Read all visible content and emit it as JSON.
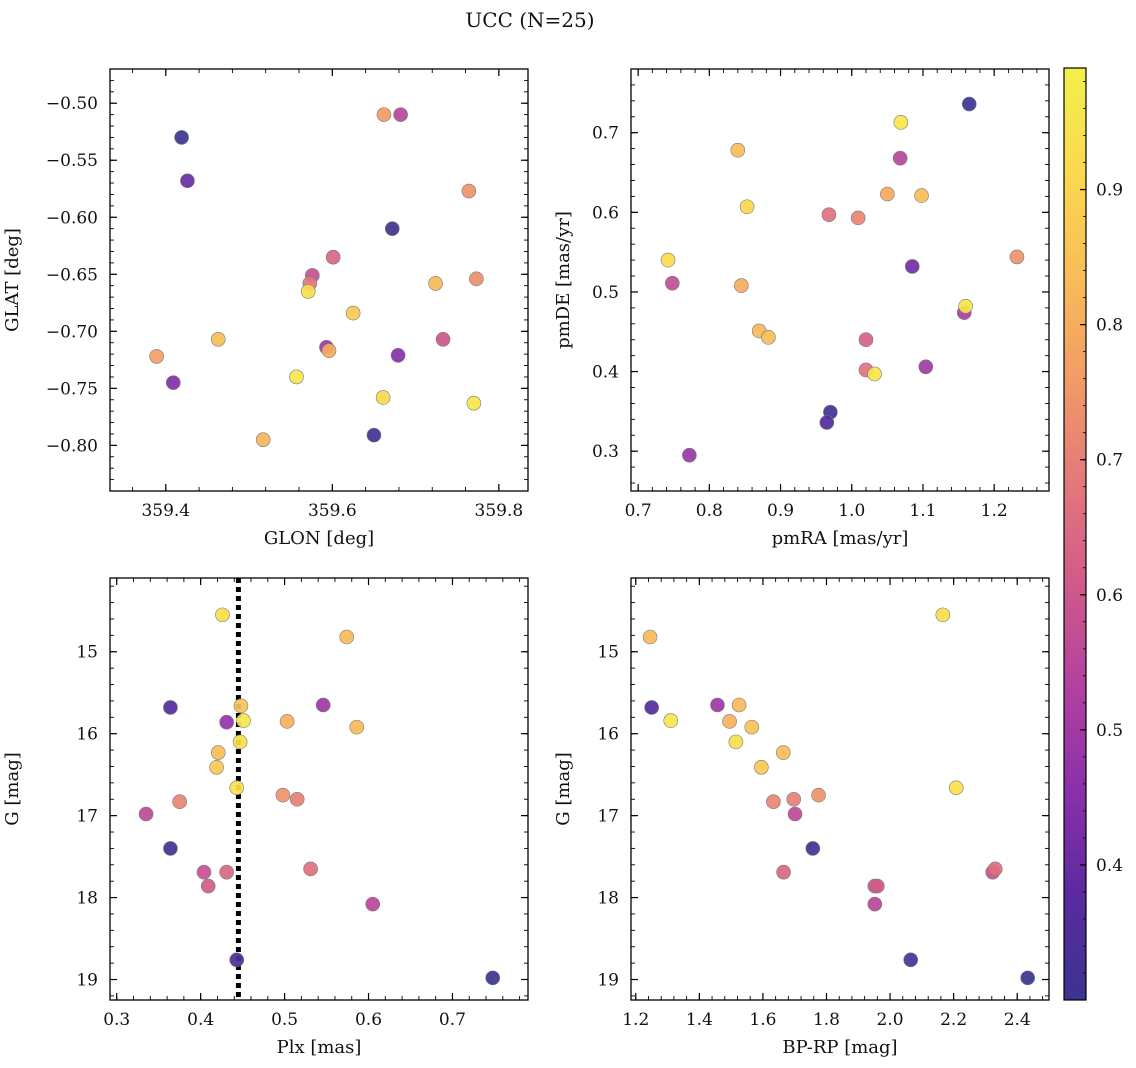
{
  "title": "UCC (N=25)",
  "colorbar": {
    "range": [
      0.3,
      0.99
    ],
    "ticks": [
      0.4,
      0.5,
      0.6,
      0.7,
      0.8,
      0.9
    ],
    "tick_labels": [
      "0.4",
      "0.5",
      "0.6",
      "0.7",
      "0.8",
      "0.9"
    ],
    "colors": [
      "#3b3490",
      "#5a2aa0",
      "#8a30ab",
      "#b240a0",
      "#cf5a8a",
      "#e4787a",
      "#f29b66",
      "#f9bd58",
      "#fbd94e",
      "#f2f04b"
    ]
  },
  "chart_data": [
    {
      "type": "scatter",
      "xlabel": "GLON [deg]",
      "ylabel": "GLAT [deg]",
      "xlim": [
        359.333,
        359.835
      ],
      "ylim": [
        -0.84,
        -0.47
      ],
      "xticks": [
        359.4,
        359.6,
        359.8
      ],
      "xtick_labels": [
        "359.4",
        "359.6",
        "359.8"
      ],
      "yticks": [
        -0.5,
        -0.55,
        -0.6,
        -0.65,
        -0.7,
        -0.75,
        -0.8
      ],
      "ytick_labels": [
        "−0.50",
        "−0.55",
        "−0.60",
        "−0.65",
        "−0.70",
        "−0.75",
        "−0.80"
      ],
      "x": [
        359.419,
        359.426,
        359.662,
        359.682,
        359.764,
        359.672,
        359.601,
        359.576,
        359.573,
        359.571,
        359.724,
        359.773,
        359.625,
        359.389,
        359.463,
        359.593,
        359.596,
        359.679,
        359.733,
        359.409,
        359.557,
        359.661,
        359.77,
        359.517,
        359.65
      ],
      "y": [
        -0.53,
        -0.568,
        -0.51,
        -0.51,
        -0.577,
        -0.61,
        -0.635,
        -0.651,
        -0.658,
        -0.665,
        -0.658,
        -0.654,
        -0.684,
        -0.722,
        -0.707,
        -0.714,
        -0.717,
        -0.721,
        -0.707,
        -0.745,
        -0.74,
        -0.758,
        -0.763,
        -0.795,
        -0.791
      ],
      "c": [
        0.31,
        0.4,
        0.76,
        0.55,
        0.74,
        0.31,
        0.64,
        0.58,
        0.68,
        0.93,
        0.83,
        0.73,
        0.87,
        0.77,
        0.84,
        0.49,
        0.8,
        0.45,
        0.6,
        0.44,
        0.96,
        0.91,
        0.95,
        0.82,
        0.32
      ]
    },
    {
      "type": "scatter",
      "xlabel": "pmRA [mas/yr]",
      "ylabel": "pmDE [mas/yr]",
      "xlim": [
        0.69,
        1.277
      ],
      "ylim": [
        0.25,
        0.78
      ],
      "xticks": [
        0.7,
        0.8,
        0.9,
        1.0,
        1.1,
        1.2
      ],
      "xtick_labels": [
        "0.7",
        "0.8",
        "0.9",
        "1.0",
        "1.1",
        "1.2"
      ],
      "yticks": [
        0.3,
        0.4,
        0.5,
        0.6,
        0.7
      ],
      "ytick_labels": [
        "0.3",
        "0.4",
        "0.5",
        "0.6",
        "0.7"
      ],
      "x": [
        1.165,
        1.069,
        1.068,
        0.84,
        0.853,
        0.968,
        1.009,
        1.05,
        1.098,
        0.742,
        0.748,
        0.845,
        1.085,
        1.232,
        1.16,
        1.158,
        0.87,
        0.883,
        1.02,
        1.02,
        1.032,
        1.104,
        0.97,
        0.965,
        0.772
      ],
      "y": [
        0.736,
        0.713,
        0.668,
        0.678,
        0.607,
        0.597,
        0.593,
        0.623,
        0.621,
        0.54,
        0.511,
        0.508,
        0.532,
        0.544,
        0.482,
        0.474,
        0.451,
        0.443,
        0.44,
        0.402,
        0.397,
        0.406,
        0.349,
        0.336,
        0.295
      ],
      "c": [
        0.31,
        0.95,
        0.55,
        0.84,
        0.91,
        0.66,
        0.71,
        0.79,
        0.84,
        0.93,
        0.57,
        0.8,
        0.42,
        0.74,
        0.96,
        0.52,
        0.83,
        0.84,
        0.63,
        0.67,
        0.95,
        0.5,
        0.32,
        0.36,
        0.48
      ]
    },
    {
      "type": "scatter",
      "xlabel": "Plx [mas]",
      "ylabel": "G [mag]",
      "xlim": [
        0.292,
        0.79
      ],
      "ylim": [
        19.25,
        14.1
      ],
      "xticks": [
        0.3,
        0.4,
        0.5,
        0.6,
        0.7
      ],
      "xtick_labels": [
        "0.3",
        "0.4",
        "0.5",
        "0.6",
        "0.7"
      ],
      "yticks": [
        15,
        16,
        17,
        18,
        19
      ],
      "ytick_labels": [
        "15",
        "16",
        "17",
        "18",
        "19"
      ],
      "vline": 0.445,
      "x": [
        0.426,
        0.574,
        0.364,
        0.448,
        0.546,
        0.431,
        0.451,
        0.503,
        0.586,
        0.447,
        0.421,
        0.419,
        0.443,
        0.498,
        0.515,
        0.375,
        0.335,
        0.364,
        0.404,
        0.431,
        0.531,
        0.409,
        0.605,
        0.443,
        0.748
      ],
      "y": [
        14.55,
        14.82,
        15.68,
        15.66,
        15.65,
        15.86,
        15.84,
        15.85,
        15.92,
        16.1,
        16.23,
        16.41,
        16.66,
        16.75,
        16.8,
        16.83,
        16.98,
        17.4,
        17.69,
        17.69,
        17.65,
        17.86,
        18.08,
        18.76,
        18.98
      ],
      "c": [
        0.93,
        0.83,
        0.36,
        0.85,
        0.49,
        0.47,
        0.96,
        0.81,
        0.83,
        0.93,
        0.84,
        0.87,
        0.94,
        0.74,
        0.7,
        0.71,
        0.56,
        0.31,
        0.58,
        0.64,
        0.66,
        0.61,
        0.55,
        0.34,
        0.3
      ]
    },
    {
      "type": "scatter",
      "xlabel": "BP-RP [mag]",
      "ylabel": "G [mag]",
      "xlim": [
        1.185,
        2.5
      ],
      "ylim": [
        19.25,
        14.1
      ],
      "xticks": [
        1.2,
        1.4,
        1.6,
        1.8,
        2.0,
        2.2,
        2.4
      ],
      "xtick_labels": [
        "1.2",
        "1.4",
        "1.6",
        "1.8",
        "2.0",
        "2.2",
        "2.4"
      ],
      "yticks": [
        15,
        16,
        17,
        18,
        19
      ],
      "ytick_labels": [
        "15",
        "16",
        "17",
        "18",
        "19"
      ],
      "x": [
        2.166,
        1.245,
        1.25,
        1.457,
        1.525,
        1.31,
        1.495,
        1.565,
        1.515,
        1.664,
        1.595,
        1.633,
        1.697,
        1.775,
        1.701,
        2.208,
        1.757,
        1.665,
        2.331,
        2.323,
        1.952,
        1.952,
        2.065,
        2.433,
        1.96
      ],
      "y": [
        14.55,
        14.82,
        15.68,
        15.65,
        15.65,
        15.84,
        15.85,
        15.92,
        16.1,
        16.23,
        16.41,
        16.83,
        16.8,
        16.75,
        16.98,
        16.66,
        17.4,
        17.69,
        17.65,
        17.69,
        17.86,
        18.08,
        18.76,
        18.98,
        17.86
      ],
      "c": [
        0.93,
        0.83,
        0.36,
        0.49,
        0.83,
        0.96,
        0.81,
        0.85,
        0.93,
        0.84,
        0.87,
        0.71,
        0.7,
        0.74,
        0.56,
        0.94,
        0.31,
        0.64,
        0.66,
        0.58,
        0.61,
        0.55,
        0.34,
        0.3,
        0.61
      ]
    }
  ]
}
